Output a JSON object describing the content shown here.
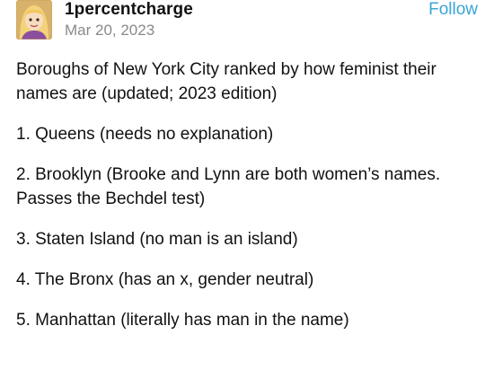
{
  "post": {
    "username": "1percentcharge",
    "date": "Mar 20, 2023",
    "follow_label": "Follow",
    "paragraphs": [
      "Boroughs of New York City ranked by how feminist their names are (updated; 2023 edition)",
      "1. Queens (needs no explanation)",
      "2. Brooklyn (Brooke and Lynn are both women’s names. Passes the Bechdel test)",
      "3. Staten Island (no man is an island)",
      "4. The Bronx (has an x, gender neutral)",
      "5. Manhattan (literally has man in the name)"
    ]
  },
  "colors": {
    "follow": "#3aa5d6",
    "date": "#8a8a8a",
    "text": "#111111"
  }
}
